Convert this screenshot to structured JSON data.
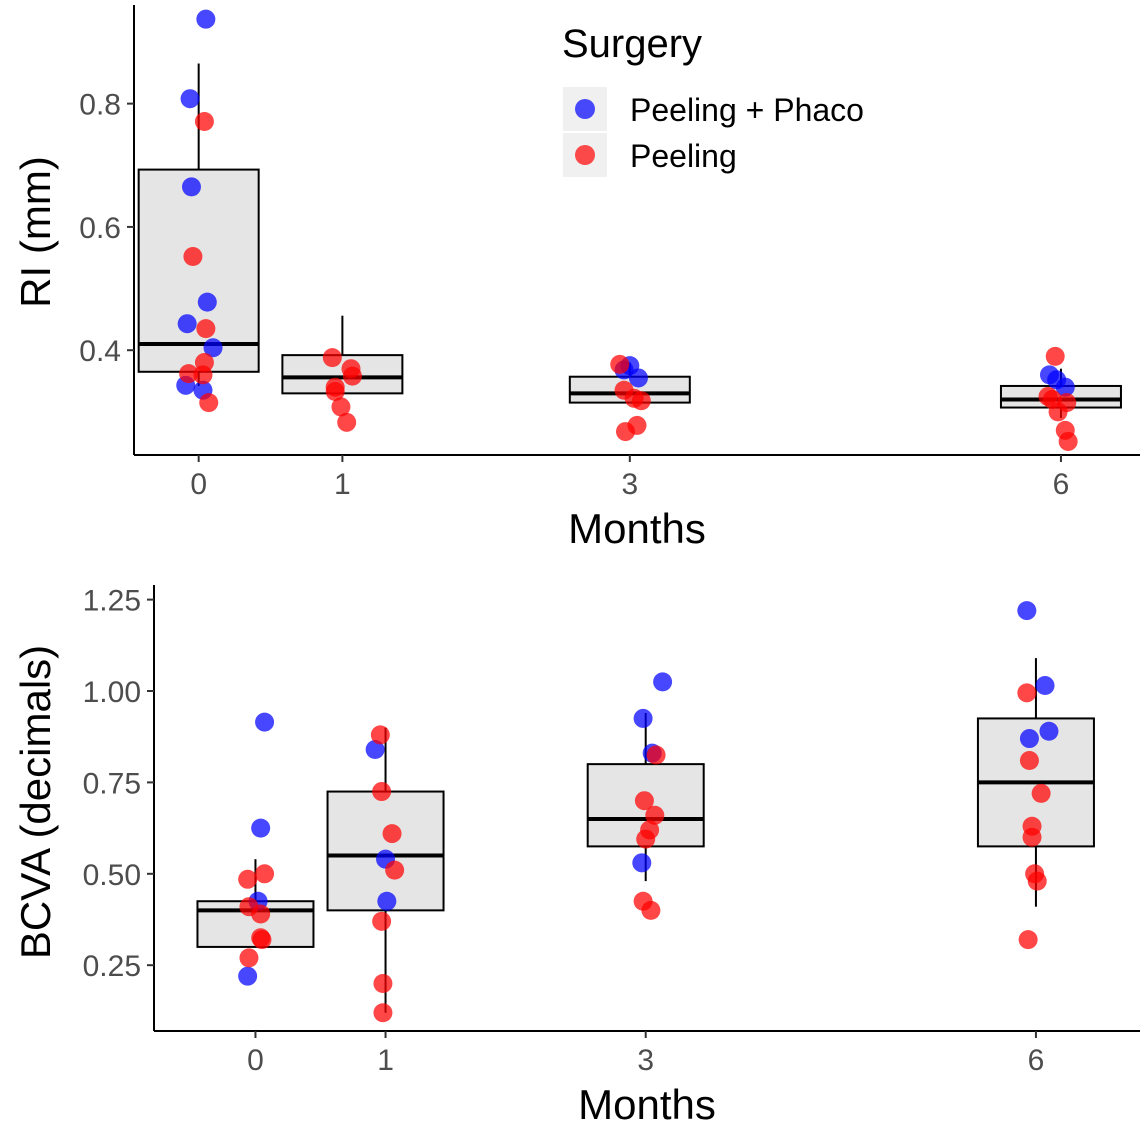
{
  "legend": {
    "title": "Surgery",
    "entries": [
      {
        "label": "Peeling + Phaco",
        "color": "#0000ff"
      },
      {
        "label": "Peeling",
        "color": "#ff0000"
      }
    ]
  },
  "chart_data": [
    {
      "type": "box",
      "title": "",
      "xlabel": "Months",
      "ylabel": "RI (mm)",
      "x_ticks": [
        "0",
        "1",
        "3",
        "6"
      ],
      "y_ticks": [
        "0.4",
        "0.6",
        "0.8"
      ],
      "xlim": [
        -0.45,
        6.55
      ],
      "ylim": [
        0.23,
        0.96
      ],
      "boxes": [
        {
          "x": 0,
          "q1": 0.365,
          "median": 0.41,
          "q3": 0.693,
          "whisker_low": 0.342,
          "whisker_high": 0.865
        },
        {
          "x": 1,
          "q1": 0.33,
          "median": 0.356,
          "q3": 0.392,
          "whisker_low": 0.33,
          "whisker_high": 0.456
        },
        {
          "x": 3,
          "q1": 0.315,
          "median": 0.33,
          "q3": 0.357,
          "whisker_low": 0.315,
          "whisker_high": 0.38
        },
        {
          "x": 6,
          "q1": 0.307,
          "median": 0.32,
          "q3": 0.342,
          "whisker_low": 0.29,
          "whisker_high": 0.37
        }
      ],
      "series": [
        {
          "name": "Peeling + Phaco",
          "color": "#0000ff",
          "x": [
            0.05,
            -0.06,
            -0.05,
            -0.09,
            0.06,
            0.1,
            -0.08,
            0.03,
            3.0,
            2.96,
            3.06,
            5.92,
            5.97,
            6.03
          ],
          "y": [
            0.937,
            0.808,
            0.665,
            0.343,
            0.478,
            0.404,
            0.443,
            0.335,
            0.375,
            0.368,
            0.355,
            0.36,
            0.352,
            0.34
          ]
        },
        {
          "name": "Peeling",
          "color": "#ff0000",
          "x": [
            0.04,
            -0.04,
            0.05,
            -0.07,
            0.04,
            0.07,
            0.03,
            1.06,
            0.93,
            1.07,
            0.95,
            0.99,
            0.95,
            1.03,
            2.93,
            2.96,
            3.03,
            3.08,
            3.05,
            2.97,
            5.96,
            5.91,
            5.94,
            6.04,
            5.98,
            6.03,
            6.05
          ],
          "y": [
            0.771,
            0.552,
            0.435,
            0.362,
            0.38,
            0.315,
            0.36,
            0.37,
            0.388,
            0.358,
            0.34,
            0.308,
            0.333,
            0.283,
            0.377,
            0.335,
            0.322,
            0.318,
            0.278,
            0.268,
            0.39,
            0.325,
            0.32,
            0.315,
            0.3,
            0.27,
            0.252
          ]
        }
      ]
    },
    {
      "type": "box",
      "title": "",
      "xlabel": "Months",
      "ylabel": "BCVA (decimals)",
      "x_ticks": [
        "0",
        "1",
        "3",
        "6"
      ],
      "y_ticks": [
        "0.25",
        "0.50",
        "0.75",
        "1.00",
        "1.25"
      ],
      "xlim": [
        -0.78,
        6.8
      ],
      "ylim": [
        0.07,
        1.29
      ],
      "boxes": [
        {
          "x": 0,
          "q1": 0.3,
          "median": 0.4,
          "q3": 0.425,
          "whisker_low": 0.3,
          "whisker_high": 0.54
        },
        {
          "x": 1,
          "q1": 0.4,
          "median": 0.55,
          "q3": 0.725,
          "whisker_low": 0.12,
          "whisker_high": 0.9
        },
        {
          "x": 3,
          "q1": 0.575,
          "median": 0.65,
          "q3": 0.8,
          "whisker_low": 0.48,
          "whisker_high": 0.94
        },
        {
          "x": 6,
          "q1": 0.575,
          "median": 0.75,
          "q3": 0.925,
          "whisker_low": 0.41,
          "whisker_high": 1.09
        }
      ],
      "series": [
        {
          "name": "Peeling + Phaco",
          "color": "#0000ff",
          "x": [
            0.04,
            0.02,
            -0.06,
            0.07,
            0.92,
            1.0,
            1.01,
            2.98,
            3.13,
            3.05,
            2.97,
            5.93,
            6.1,
            6.07,
            5.95
          ],
          "y": [
            0.625,
            0.425,
            0.22,
            0.915,
            0.84,
            0.54,
            0.425,
            0.925,
            1.025,
            0.83,
            0.53,
            1.22,
            0.89,
            1.015,
            0.87
          ]
        },
        {
          "name": "Peeling",
          "color": "#ff0000",
          "x": [
            -0.06,
            0.07,
            -0.05,
            0.04,
            0.04,
            -0.05,
            0.05,
            0.96,
            0.97,
            1.05,
            1.07,
            0.97,
            0.98,
            0.98,
            2.99,
            3.08,
            3.07,
            3.03,
            3.0,
            2.98,
            3.04,
            5.93,
            5.95,
            6.04,
            5.97,
            5.97,
            5.99,
            6.01,
            5.94
          ],
          "y": [
            0.485,
            0.5,
            0.41,
            0.39,
            0.325,
            0.27,
            0.32,
            0.88,
            0.725,
            0.61,
            0.51,
            0.37,
            0.2,
            0.12,
            0.7,
            0.825,
            0.66,
            0.62,
            0.595,
            0.425,
            0.4,
            0.995,
            0.81,
            0.72,
            0.63,
            0.6,
            0.5,
            0.48,
            0.32
          ]
        }
      ]
    }
  ]
}
